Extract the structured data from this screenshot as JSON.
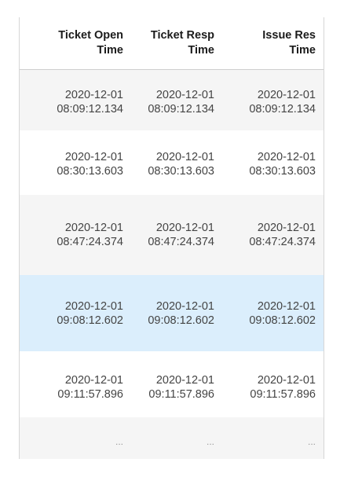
{
  "table": {
    "columns": [
      {
        "line1": "Ticket Open",
        "line2": "Time"
      },
      {
        "line1": "Ticket Resp",
        "line2": "Time"
      },
      {
        "line1": "Issue Res",
        "line2": "Time"
      }
    ],
    "rows": [
      {
        "cells": [
          {
            "date": "2020-12-01",
            "time": "08:09:12.134"
          },
          {
            "date": "2020-12-01",
            "time": "08:09:12.134"
          },
          {
            "date": "2020-12-01",
            "time": "08:09:12.134"
          }
        ]
      },
      {
        "cells": [
          {
            "date": "2020-12-01",
            "time": "08:30:13.603"
          },
          {
            "date": "2020-12-01",
            "time": "08:30:13.603"
          },
          {
            "date": "2020-12-01",
            "time": "08:30:13.603"
          }
        ]
      },
      {
        "cells": [
          {
            "date": "2020-12-01",
            "time": "08:47:24.374"
          },
          {
            "date": "2020-12-01",
            "time": "08:47:24.374"
          },
          {
            "date": "2020-12-01",
            "time": "08:47:24.374"
          }
        ]
      },
      {
        "cells": [
          {
            "date": "2020-12-01",
            "time": "09:08:12.602"
          },
          {
            "date": "2020-12-01",
            "time": "09:08:12.602"
          },
          {
            "date": "2020-12-01",
            "time": "09:08:12.602"
          }
        ]
      },
      {
        "cells": [
          {
            "date": "2020-12-01",
            "time": "09:11:57.896"
          },
          {
            "date": "2020-12-01",
            "time": "09:11:57.896"
          },
          {
            "date": "2020-12-01",
            "time": "09:11:57.896"
          }
        ]
      }
    ],
    "ellipsis": [
      "...",
      "...",
      "..."
    ],
    "highlight_color": "#dbeefc",
    "stripe_color": "#f5f5f5"
  }
}
